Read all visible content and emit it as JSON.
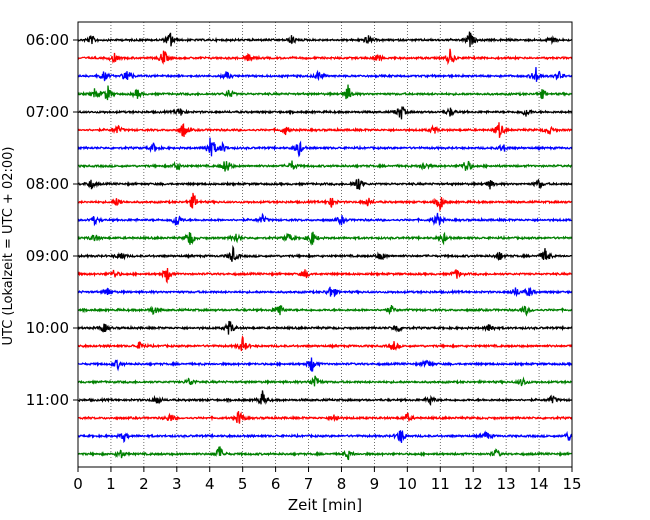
{
  "chart_data": {
    "type": "line",
    "title": "",
    "xlabel": "Zeit  [min]",
    "ylabel": "UTC (Lokalzeit = UTC + 02:00)",
    "xlim": [
      0,
      15
    ],
    "x_ticks": [
      "0",
      "1",
      "2",
      "3",
      "4",
      "5",
      "6",
      "7",
      "8",
      "9",
      "10",
      "11",
      "12",
      "13",
      "14",
      "15"
    ],
    "y_ticks": [
      "06:00",
      "07:00",
      "08:00",
      "09:00",
      "10:00",
      "11:00"
    ],
    "trace_interval_min": 15,
    "first_trace": "06:00",
    "trace_count": 24,
    "trace_colors": [
      "#000000",
      "#ff0000",
      "#0000ff",
      "#008000"
    ],
    "grid": "vertical dotted lines at each minute",
    "series": [
      {
        "start": "06:00",
        "color": "#000000",
        "events_min": [
          0.4,
          2.8,
          6.5,
          8.8,
          11.9,
          14.4
        ]
      },
      {
        "start": "06:15",
        "color": "#ff0000",
        "events_min": [
          1.1,
          2.6,
          5.2,
          9.1,
          11.3
        ]
      },
      {
        "start": "06:30",
        "color": "#0000ff",
        "events_min": [
          0.8,
          1.5,
          4.5,
          7.3,
          13.9,
          14.6
        ]
      },
      {
        "start": "06:45",
        "color": "#008000",
        "events_min": [
          0.5,
          0.9,
          1.8,
          4.6,
          8.2,
          14.1
        ]
      },
      {
        "start": "07:00",
        "color": "#000000",
        "events_min": [
          3.1,
          9.8,
          11.3,
          13.6
        ]
      },
      {
        "start": "07:15",
        "color": "#ff0000",
        "events_min": [
          1.2,
          3.2,
          6.3,
          10.8,
          12.8,
          14.3
        ]
      },
      {
        "start": "07:30",
        "color": "#0000ff",
        "events_min": [
          2.3,
          4.0,
          4.1,
          4.4,
          6.7,
          12.9
        ]
      },
      {
        "start": "07:45",
        "color": "#008000",
        "events_min": [
          3.0,
          4.5,
          6.5,
          10.5,
          11.8
        ]
      },
      {
        "start": "08:00",
        "color": "#000000",
        "events_min": [
          0.4,
          8.5,
          12.5,
          14.0
        ]
      },
      {
        "start": "08:15",
        "color": "#ff0000",
        "events_min": [
          1.2,
          3.5,
          7.7,
          8.8,
          11.0
        ]
      },
      {
        "start": "08:30",
        "color": "#0000ff",
        "events_min": [
          0.5,
          3.0,
          5.6,
          8.0,
          10.9
        ]
      },
      {
        "start": "08:45",
        "color": "#008000",
        "events_min": [
          0.5,
          3.4,
          4.8,
          6.4,
          7.1,
          11.1
        ]
      },
      {
        "start": "09:00",
        "color": "#000000",
        "events_min": [
          1.3,
          4.7,
          9.2,
          12.8,
          14.2
        ]
      },
      {
        "start": "09:15",
        "color": "#ff0000",
        "events_min": [
          1.1,
          2.7,
          6.9,
          11.5
        ]
      },
      {
        "start": "09:30",
        "color": "#0000ff",
        "events_min": [
          0.9,
          7.7,
          13.3,
          13.7
        ]
      },
      {
        "start": "09:45",
        "color": "#008000",
        "events_min": [
          2.3,
          6.1,
          9.5,
          13.6
        ]
      },
      {
        "start": "10:00",
        "color": "#000000",
        "events_min": [
          0.8,
          4.6,
          9.7,
          12.5
        ]
      },
      {
        "start": "10:15",
        "color": "#ff0000",
        "events_min": [
          1.9,
          5.0,
          9.6
        ]
      },
      {
        "start": "10:30",
        "color": "#0000ff",
        "events_min": [
          1.2,
          7.1,
          10.6
        ]
      },
      {
        "start": "10:45",
        "color": "#008000",
        "events_min": [
          3.4,
          7.2,
          13.5
        ]
      },
      {
        "start": "11:00",
        "color": "#000000",
        "events_min": [
          2.4,
          5.6,
          10.7,
          14.4
        ]
      },
      {
        "start": "11:15",
        "color": "#ff0000",
        "events_min": [
          2.8,
          4.9,
          7.8,
          10.0
        ]
      },
      {
        "start": "11:30",
        "color": "#0000ff",
        "events_min": [
          1.4,
          9.8,
          12.4,
          14.9
        ]
      },
      {
        "start": "11:45",
        "color": "#008000",
        "events_min": [
          1.3,
          4.3,
          8.2,
          12.7
        ]
      }
    ]
  }
}
